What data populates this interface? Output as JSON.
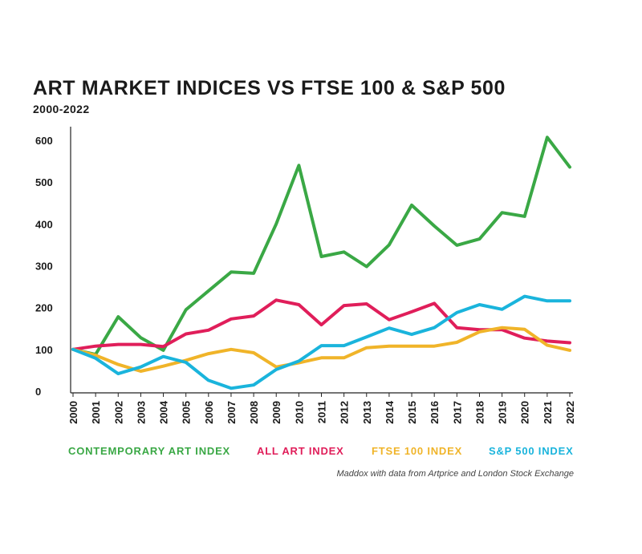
{
  "header": {
    "title": "ART MARKET INDICES VS FTSE 100 & S&P 500",
    "subtitle": "2000-2022"
  },
  "source": "Maddox with data from Artprice and London Stock Exchange",
  "chart_data": {
    "type": "line",
    "title": "ART MARKET INDICES VS FTSE 100 & S&P 500",
    "subtitle": "2000-2022",
    "xlabel": "",
    "ylabel": "",
    "ylim": [
      0,
      600
    ],
    "yticks": [
      0,
      100,
      200,
      300,
      400,
      500,
      600
    ],
    "grid": false,
    "legend": "bottom",
    "categories": [
      "2000",
      "2001",
      "2002",
      "2003",
      "2004",
      "2005",
      "2006",
      "2007",
      "2008",
      "2009",
      "2010",
      "2011",
      "2012",
      "2013",
      "2014",
      "2015",
      "2016",
      "2017",
      "2018",
      "2019",
      "2020",
      "2021",
      "2022"
    ],
    "series": [
      {
        "name": "CONTEMPORARY ART INDEX",
        "color": "#3aa845",
        "values": [
          100,
          88,
          178,
          128,
          98,
          195,
          240,
          285,
          282,
          400,
          540,
          322,
          333,
          298,
          350,
          445,
          395,
          349,
          364,
          427,
          418,
          607,
          536
        ]
      },
      {
        "name": "ALL ART INDEX",
        "color": "#e01e5a",
        "values": [
          100,
          108,
          112,
          112,
          107,
          137,
          146,
          173,
          180,
          218,
          207,
          159,
          205,
          209,
          171,
          190,
          210,
          152,
          147,
          147,
          127,
          120,
          116
        ]
      },
      {
        "name": "FTSE 100 INDEX",
        "color": "#f0b429",
        "values": [
          100,
          86,
          64,
          48,
          60,
          74,
          90,
          100,
          92,
          58,
          68,
          80,
          80,
          104,
          108,
          108,
          108,
          117,
          142,
          152,
          148,
          110,
          98
        ]
      },
      {
        "name": "S&P 500 INDEX",
        "color": "#1ab4dc",
        "values": [
          100,
          79,
          42,
          58,
          83,
          69,
          26,
          7,
          15,
          52,
          72,
          109,
          109,
          130,
          151,
          136,
          152,
          188,
          207,
          196,
          227,
          216,
          216
        ]
      }
    ]
  }
}
